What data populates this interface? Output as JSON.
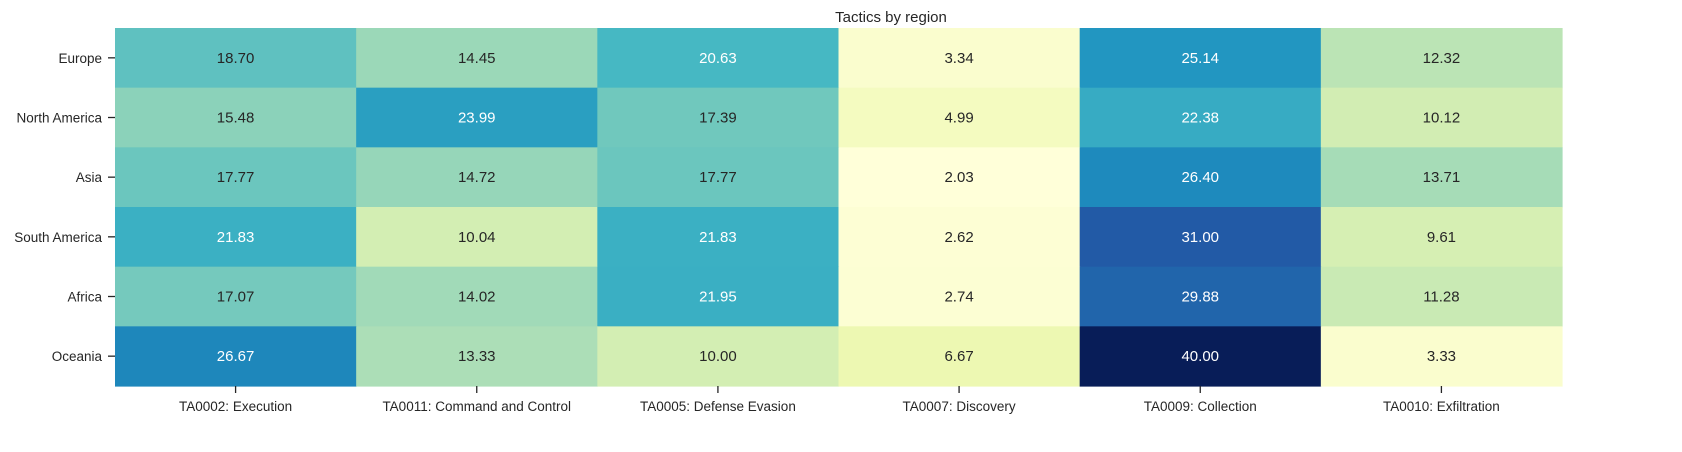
{
  "chart_data": {
    "type": "heatmap",
    "title": "Tactics by region",
    "xlabel": "",
    "ylabel": "",
    "columns": [
      "TA0002: Execution",
      "TA0011: Command and Control",
      "TA0005: Defense Evasion",
      "TA0007: Discovery",
      "TA0009: Collection",
      "TA0010: Exfiltration"
    ],
    "rows": [
      "Europe",
      "North America",
      "Asia",
      "South America",
      "Africa",
      "Oceania"
    ],
    "values": [
      [
        18.7,
        14.45,
        20.63,
        3.34,
        25.14,
        12.32
      ],
      [
        15.48,
        23.99,
        17.39,
        4.99,
        22.38,
        10.12
      ],
      [
        17.77,
        14.72,
        17.77,
        2.03,
        26.4,
        13.71
      ],
      [
        21.83,
        10.04,
        21.83,
        2.62,
        31.0,
        9.61
      ],
      [
        17.07,
        14.02,
        21.95,
        2.74,
        29.88,
        11.28
      ],
      [
        26.67,
        13.33,
        10.0,
        6.67,
        40.0,
        3.33
      ]
    ],
    "value_format": "0.00",
    "colormap": "YlGnBu",
    "colorbar": false
  }
}
